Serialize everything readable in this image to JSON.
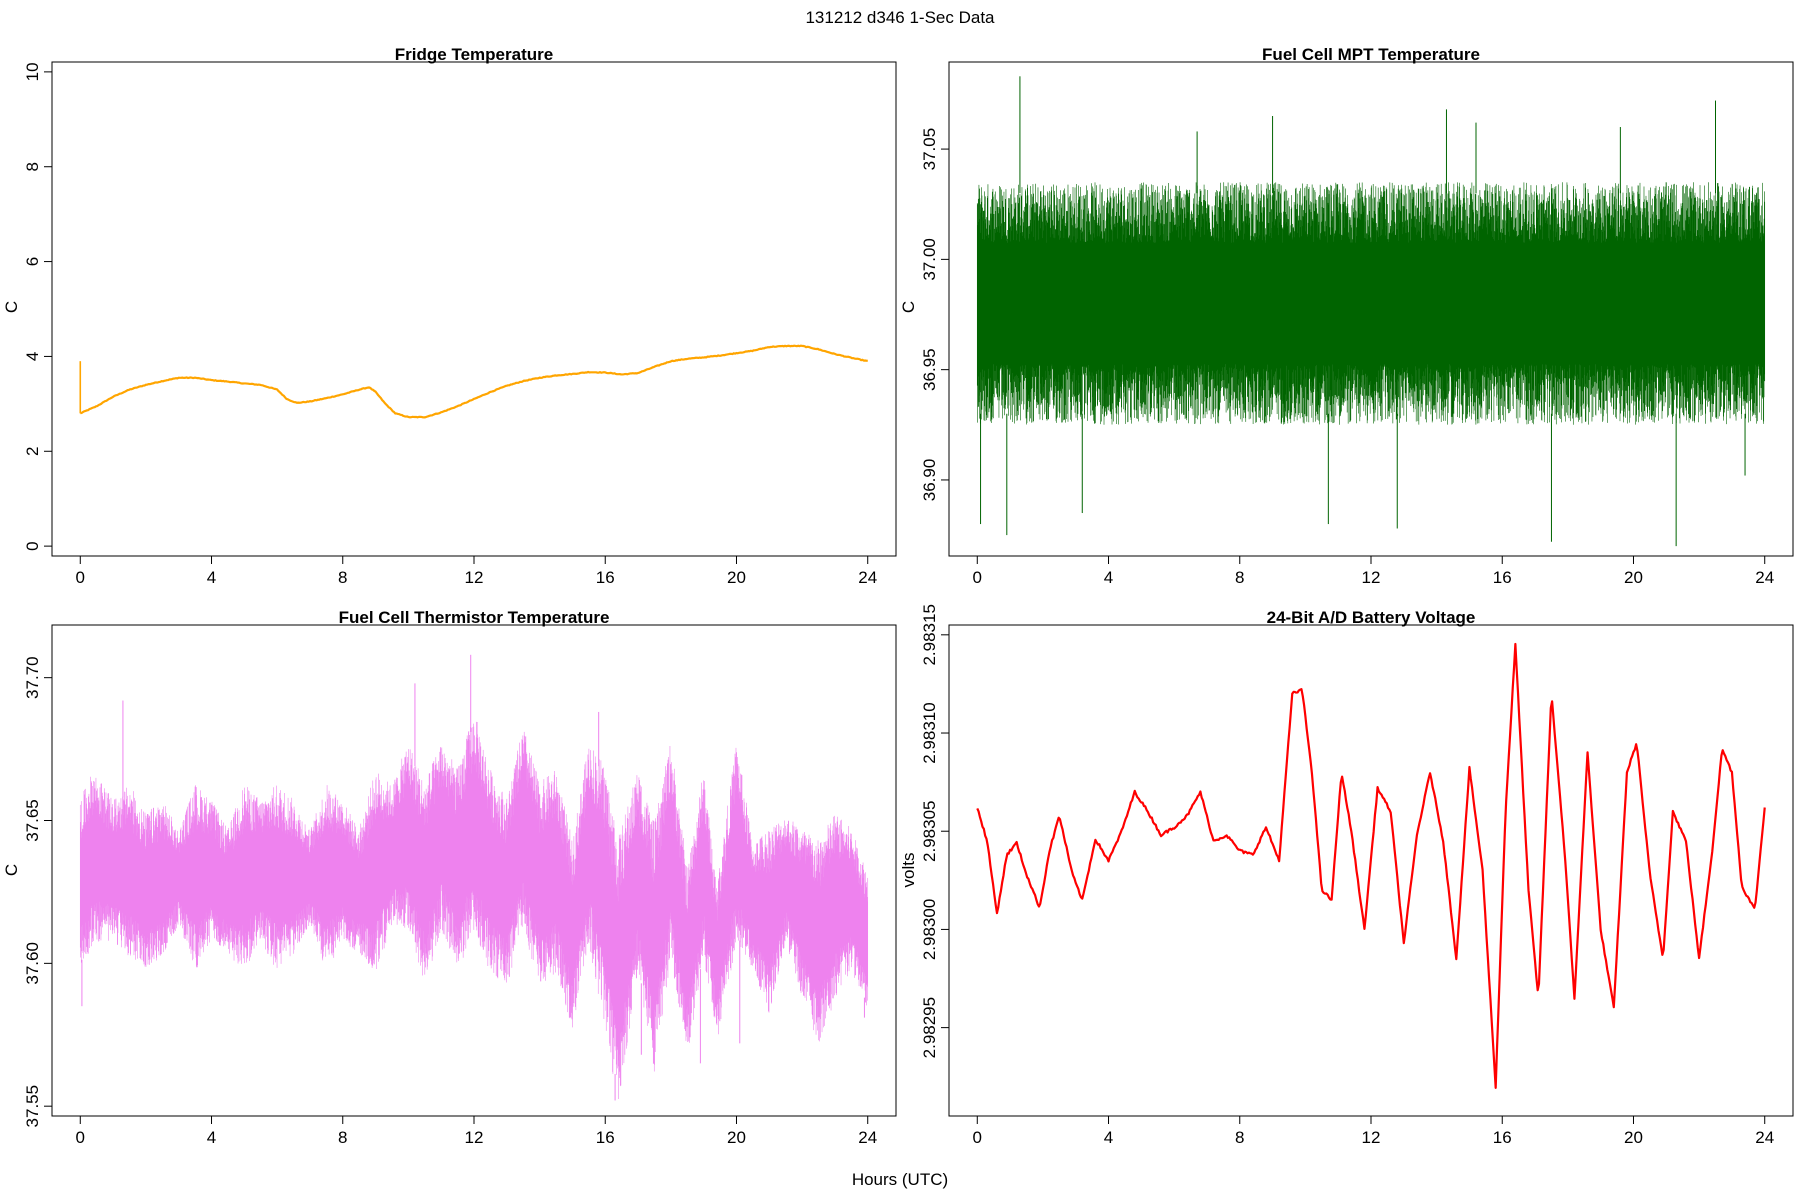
{
  "figure": {
    "title": "131212   d346   1-Sec Data",
    "xlabel": "Hours (UTC)"
  },
  "chart_data": [
    {
      "type": "line",
      "title": "Fridge Temperature",
      "ylabel": "C",
      "xlim": [
        0,
        24
      ],
      "ylim": [
        0,
        10
      ],
      "xticks": [
        "0",
        "4",
        "8",
        "12",
        "16",
        "20",
        "24"
      ],
      "yticks": [
        "0",
        "2",
        "4",
        "6",
        "8",
        "10"
      ],
      "color": "#FFA500",
      "start_spike": {
        "x": 0.0,
        "y": 3.9
      },
      "series": [
        {
          "x": [
            0,
            0.5,
            1,
            1.5,
            2,
            2.5,
            3,
            3.5,
            4,
            4.5,
            5,
            5.5,
            6,
            6.3,
            6.6,
            7,
            7.5,
            8,
            8.5,
            8.8,
            9,
            9.3,
            9.6,
            10,
            10.5,
            11,
            11.5,
            12,
            12.5,
            13,
            13.5,
            14,
            14.5,
            15,
            15.5,
            16,
            16.5,
            17,
            17.5,
            18,
            18.5,
            19,
            19.5,
            20,
            20.5,
            21,
            21.5,
            22,
            22.5,
            23,
            23.5,
            24
          ],
          "y": [
            2.8,
            2.95,
            3.15,
            3.3,
            3.4,
            3.48,
            3.55,
            3.55,
            3.5,
            3.47,
            3.43,
            3.4,
            3.3,
            3.1,
            3.02,
            3.05,
            3.12,
            3.2,
            3.3,
            3.35,
            3.25,
            3.0,
            2.8,
            2.72,
            2.72,
            2.82,
            2.95,
            3.1,
            3.25,
            3.38,
            3.48,
            3.55,
            3.6,
            3.63,
            3.67,
            3.66,
            3.62,
            3.65,
            3.78,
            3.9,
            3.95,
            3.98,
            4.02,
            4.07,
            4.12,
            4.2,
            4.22,
            4.22,
            4.15,
            4.05,
            3.97,
            3.9
          ]
        }
      ]
    },
    {
      "type": "line",
      "title": "Fuel Cell MPT Temperature",
      "ylabel": "C",
      "xlim": [
        0,
        24
      ],
      "ylim": [
        36.87,
        37.085
      ],
      "xticks": [
        "0",
        "4",
        "8",
        "12",
        "16",
        "20",
        "24"
      ],
      "yticks": [
        "36.90",
        "36.95",
        "37.00",
        "37.05"
      ],
      "color": "#006400",
      "noise_band": {
        "x": [
          0,
          2,
          4,
          6,
          8,
          10,
          12,
          14,
          16,
          18,
          20,
          22,
          24
        ],
        "upper": [
          37.03,
          37.03,
          37.03,
          37.03,
          37.03,
          37.03,
          37.03,
          37.03,
          37.03,
          37.03,
          37.03,
          37.03,
          37.03
        ],
        "lower": [
          36.93,
          36.93,
          36.93,
          36.93,
          36.93,
          36.93,
          36.93,
          36.93,
          36.93,
          36.93,
          36.93,
          36.93,
          36.93
        ]
      },
      "series": [
        {
          "x": [
            1.3,
            0.1,
            9.0,
            14.3,
            22.5,
            17.5,
            21.3,
            0.9,
            6.7,
            12.8,
            19.6,
            23.4,
            3.2,
            15.2,
            10.7
          ],
          "y": [
            37.083,
            36.88,
            37.065,
            37.068,
            37.072,
            36.872,
            36.87,
            36.875,
            37.058,
            36.878,
            37.06,
            36.902,
            36.885,
            37.062,
            36.88
          ]
        }
      ]
    },
    {
      "type": "line",
      "title": "Fuel Cell Thermistor Temperature",
      "ylabel": "C",
      "xlim": [
        0,
        24
      ],
      "ylim": [
        37.55,
        37.715
      ],
      "xticks": [
        "0",
        "4",
        "8",
        "12",
        "16",
        "20",
        "24"
      ],
      "yticks": [
        "37.55",
        "37.60",
        "37.65",
        "37.70"
      ],
      "color": "#EE82EE",
      "noise_band": {
        "x": [
          0,
          0.4,
          1,
          1.5,
          2,
          2.5,
          3,
          3.5,
          4,
          4.5,
          5,
          5.5,
          6,
          6.5,
          7,
          7.5,
          8,
          8.5,
          9,
          9.5,
          10,
          10.5,
          11,
          11.5,
          12,
          12.5,
          13,
          13.5,
          14,
          14.5,
          15,
          15.5,
          16,
          16.4,
          17,
          17.5,
          18,
          18.5,
          19,
          19.4,
          20,
          20.5,
          21,
          21.5,
          22,
          22.5,
          23,
          23.5,
          24
        ],
        "upper": [
          37.655,
          37.665,
          37.655,
          37.66,
          37.65,
          37.655,
          37.645,
          37.66,
          37.655,
          37.645,
          37.66,
          37.655,
          37.66,
          37.655,
          37.645,
          37.66,
          37.655,
          37.645,
          37.665,
          37.66,
          37.675,
          37.66,
          37.675,
          37.665,
          37.685,
          37.665,
          37.655,
          37.68,
          37.66,
          37.665,
          37.64,
          37.675,
          37.665,
          37.64,
          37.665,
          37.645,
          37.675,
          37.63,
          37.665,
          37.625,
          37.675,
          37.64,
          37.645,
          37.65,
          37.645,
          37.64,
          37.65,
          37.645,
          37.63
        ],
        "lower": [
          37.6,
          37.61,
          37.61,
          37.605,
          37.6,
          37.605,
          37.615,
          37.6,
          37.61,
          37.605,
          37.6,
          37.61,
          37.6,
          37.605,
          37.615,
          37.6,
          37.61,
          37.605,
          37.6,
          37.615,
          37.615,
          37.595,
          37.615,
          37.6,
          37.615,
          37.6,
          37.595,
          37.615,
          37.595,
          37.6,
          37.58,
          37.61,
          37.58,
          37.555,
          37.6,
          37.565,
          37.605,
          37.57,
          37.605,
          37.575,
          37.61,
          37.6,
          37.585,
          37.61,
          37.59,
          37.575,
          37.59,
          37.6,
          37.585
        ]
      },
      "series": [
        {
          "x": [
            0.05,
            1.3,
            11.9,
            10.2,
            15.8,
            16.3,
            17.1,
            18.9,
            20.1,
            23.9
          ],
          "y": [
            37.585,
            37.692,
            37.708,
            37.698,
            37.688,
            37.552,
            37.568,
            37.565,
            37.572,
            37.581
          ]
        }
      ]
    },
    {
      "type": "line",
      "title": "24-Bit A/D Battery Voltage",
      "ylabel": "volts",
      "xlim": [
        0,
        24
      ],
      "ylim": [
        2.98291,
        2.98315
      ],
      "xticks": [
        "0",
        "4",
        "8",
        "12",
        "16",
        "20",
        "24"
      ],
      "yticks": [
        "2.98295",
        "2.98300",
        "2.98305",
        "2.98310",
        "2.98315"
      ],
      "color": "#FF0000",
      "series": [
        {
          "x": [
            0,
            0.3,
            0.6,
            0.9,
            1.2,
            1.5,
            1.9,
            2.2,
            2.5,
            2.9,
            3.2,
            3.6,
            4.0,
            4.4,
            4.8,
            5.2,
            5.6,
            6.0,
            6.4,
            6.8,
            7.2,
            7.6,
            8.0,
            8.4,
            8.8,
            9.2,
            9.6,
            9.9,
            10.2,
            10.5,
            10.8,
            11.1,
            11.4,
            11.8,
            12.2,
            12.6,
            13.0,
            13.4,
            13.8,
            14.2,
            14.6,
            15.0,
            15.4,
            15.8,
            16.1,
            16.4,
            16.8,
            17.1,
            17.5,
            17.9,
            18.2,
            18.6,
            19.0,
            19.4,
            19.8,
            20.1,
            20.5,
            20.9,
            21.2,
            21.6,
            22.0,
            22.4,
            22.7,
            23.0,
            23.3,
            23.7,
            24.0
          ],
          "y": [
            2.983062,
            2.983045,
            2.983008,
            2.983038,
            2.983044,
            2.983028,
            2.983011,
            2.98304,
            2.983058,
            2.983028,
            2.983015,
            2.983046,
            2.983035,
            2.98305,
            2.98307,
            2.98306,
            2.983048,
            2.983052,
            2.983058,
            2.98307,
            2.983045,
            2.983048,
            2.98304,
            2.983038,
            2.983052,
            2.983035,
            2.98312,
            2.983122,
            2.98308,
            2.98302,
            2.983015,
            2.98308,
            2.98305,
            2.983,
            2.983072,
            2.98306,
            2.982993,
            2.983048,
            2.98308,
            2.983045,
            2.982985,
            2.983082,
            2.98303,
            2.98292,
            2.98306,
            2.983145,
            2.98302,
            2.982965,
            2.98312,
            2.98304,
            2.982965,
            2.98309,
            2.983,
            2.98296,
            2.98308,
            2.983095,
            2.983028,
            2.982985,
            2.98306,
            2.983045,
            2.982985,
            2.98304,
            2.983092,
            2.98308,
            2.983022,
            2.98301,
            2.983062
          ]
        }
      ]
    }
  ]
}
